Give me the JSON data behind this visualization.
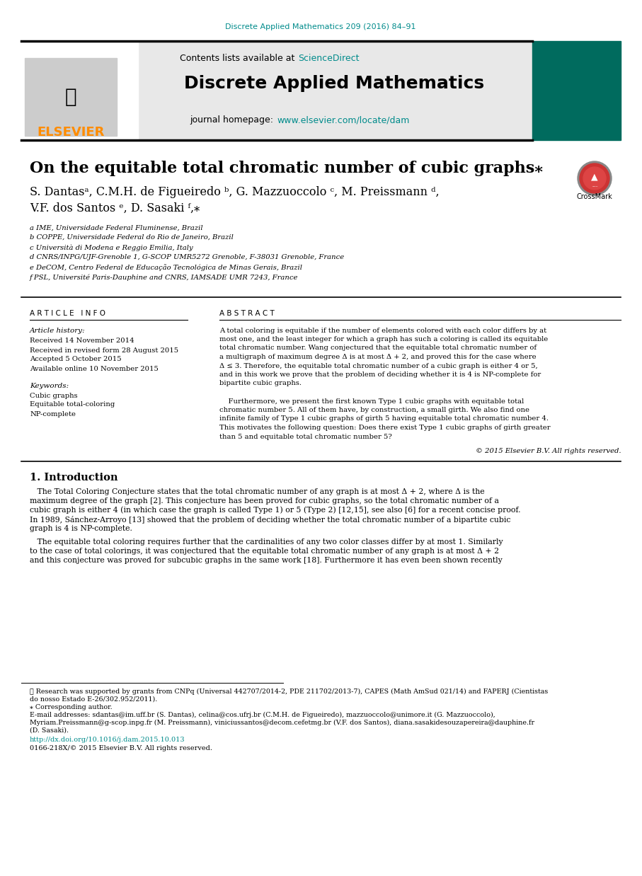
{
  "journal_ref": "Discrete Applied Mathematics 209 (2016) 84–91",
  "journal_ref_color": "#008B8B",
  "header_bg": "#e8e8e8",
  "header_title": "Discrete Applied Mathematics",
  "header_subtitle_pre": "Contents lists available at ",
  "header_subtitle_link": "ScienceDirect",
  "header_url_pre": "journal homepage: ",
  "header_url_link": "www.elsevier.com/locate/dam",
  "elsevier_color": "#FF8C00",
  "link_color": "#008B8B",
  "paper_title": "On the equitable total chromatic number of cubic graphs",
  "affil_a": "a IME, Universidade Federal Fluminense, Brazil",
  "affil_b": "b COPPE, Universidade Federal do Rio de Janeiro, Brazil",
  "affil_c": "c Università di Modena e Reggio Emilia, Italy",
  "affil_d": "d CNRS/INPG/UJF-Grenoble 1, G-SCOP UMR5272 Grenoble, F-38031 Grenoble, France",
  "affil_e": "e DeCOM, Centro Federal de Educação Tecnológica de Minas Gerais, Brazil",
  "affil_f": "f PSL, Université Paris-Dauphine and CNRS, IAMSADE UMR 7243, France",
  "article_history_label": "Article history:",
  "received": "Received 14 November 2014",
  "revised": "Received in revised form 28 August 2015",
  "accepted": "Accepted 5 October 2015",
  "available": "Available online 10 November 2015",
  "keywords_label": "Keywords:",
  "keyword1": "Cubic graphs",
  "keyword2": "Equitable total-coloring",
  "keyword3": "NP-complete",
  "abstract_lines": [
    "A total coloring is equitable if the number of elements colored with each color differs by at",
    "most one, and the least integer for which a graph has such a coloring is called its equitable",
    "total chromatic number. Wang conjectured that the equitable total chromatic number of",
    "a multigraph of maximum degree Δ is at most Δ + 2, and proved this for the case where",
    "Δ ≤ 3. Therefore, the equitable total chromatic number of a cubic graph is either 4 or 5,",
    "and in this work we prove that the problem of deciding whether it is 4 is NP-complete for",
    "bipartite cubic graphs.",
    "",
    "    Furthermore, we present the first known Type 1 cubic graphs with equitable total",
    "chromatic number 5. All of them have, by construction, a small girth. We also find one",
    "infinite family of Type 1 cubic graphs of girth 5 having equitable total chromatic number 4.",
    "This motivates the following question: Does there exist Type 1 cubic graphs of girth greater",
    "than 5 and equitable total chromatic number 5?"
  ],
  "copyright": "© 2015 Elsevier B.V. All rights reserved.",
  "section1_title": "1. Introduction",
  "intro_lines1": [
    "   The Total Coloring Conjecture states that the total chromatic number of any graph is at most Δ + 2, where Δ is the",
    "maximum degree of the graph [2]. This conjecture has been proved for cubic graphs, so the total chromatic number of a",
    "cubic graph is either 4 (in which case the graph is called Type 1) or 5 (Type 2) [12,15], see also [6] for a recent concise proof.",
    "In 1989, Sánchez-Arroyo [13] showed that the problem of deciding whether the total chromatic number of a bipartite cubic",
    "graph is 4 is NP-complete."
  ],
  "intro_lines2": [
    "   The equitable total coloring requires further that the cardinalities of any two color classes differ by at most 1. Similarly",
    "to the case of total colorings, it was conjectured that the equitable total chromatic number of any graph is at most Δ + 2",
    "and this conjecture was proved for subcubic graphs in the same work [18]. Furthermore it has even been shown recently"
  ],
  "footnote_star": "★ Research was supported by grants from CNPq (Universal 442707/2014-2, PDE 211702/2013-7), CAPES (Math AmSud 021/14) and FAPERJ (Cientistas",
  "footnote_star2": "do nosso Estado E-26/302.952/2011).",
  "footnote_corresponding": "⁎ Corresponding author.",
  "footnote_email1": "E-mail addresses: sdantas@im.uff.br (S. Dantas), celina@cos.ufrj.br (C.M.H. de Figueiredo), mazzuoccolo@unimore.it (G. Mazzuoccolo),",
  "footnote_email2": "Myriam.Preissmann@g-scop.inpg.fr (M. Preissmann), viniciussantos@decom.cefetmg.br (V.F. dos Santos), diana.sasakidesouzapereira@dauphine.fr",
  "footnote_email3": "(D. Sasaki).",
  "doi_link": "http://dx.doi.org/10.1016/j.dam.2015.10.013",
  "issn_line": "0166-218X/© 2015 Elsevier B.V. All rights reserved.",
  "bg_color": "#ffffff",
  "text_color": "#000000",
  "green_cover": "#006B5E"
}
